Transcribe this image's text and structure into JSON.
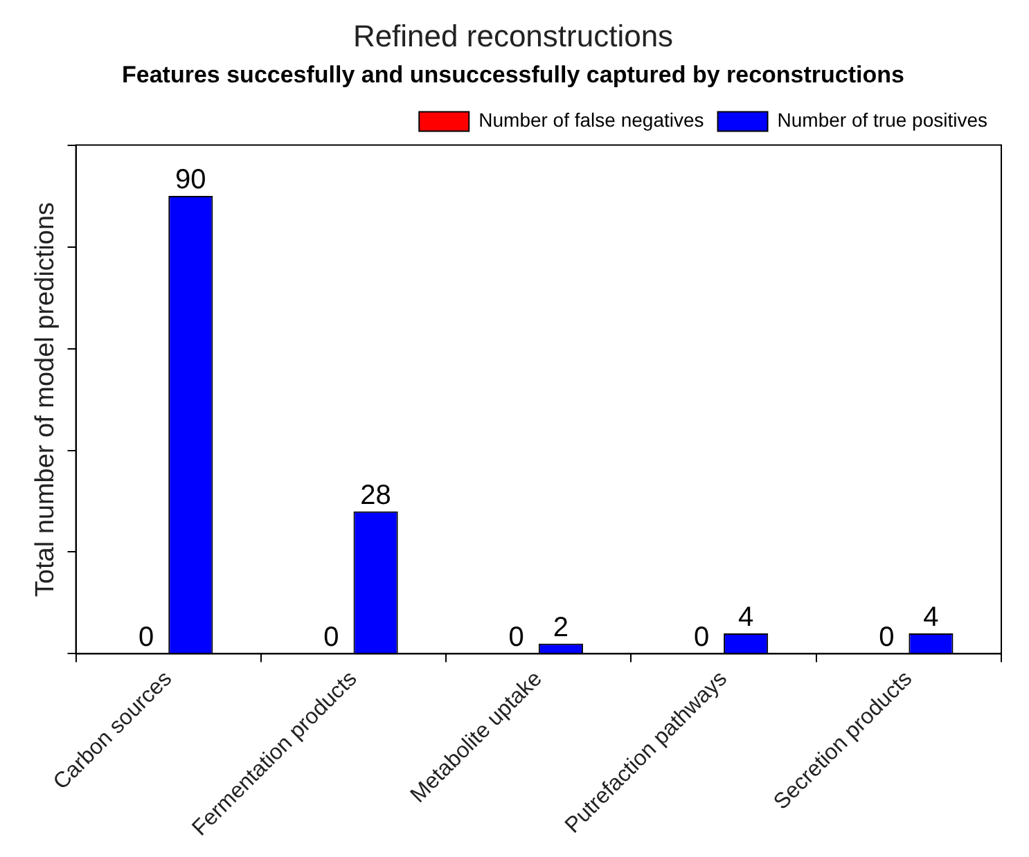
{
  "chart_data": {
    "type": "bar",
    "title": "Refined reconstructions",
    "subtitle": "Features succesfully and unsuccessfully captured by reconstructions",
    "ylabel": "Total number of model predictions",
    "categories": [
      "Carbon sources",
      "Fermentation products",
      "Metabolite uptake",
      "Putrefaction pathways",
      "Secretion products"
    ],
    "series": [
      {
        "name": "Number of false negatives",
        "color": "#ff0000",
        "values": [
          0,
          0,
          0,
          0,
          0
        ]
      },
      {
        "name": "Number of true positives",
        "color": "#0000ff",
        "values": [
          90,
          28,
          2,
          4,
          4
        ]
      }
    ],
    "ylim": [
      0,
      100
    ],
    "yticks": [
      {
        "value": 0,
        "label": null
      },
      {
        "value": 20,
        "label": null
      },
      {
        "value": 40,
        "label": null
      },
      {
        "value": 60,
        "label": null
      },
      {
        "value": 80,
        "label": null
      },
      {
        "value": 100,
        "label": null
      }
    ],
    "tick_labels": "x",
    "data_labels": true,
    "grid": false,
    "legend": "top right"
  }
}
